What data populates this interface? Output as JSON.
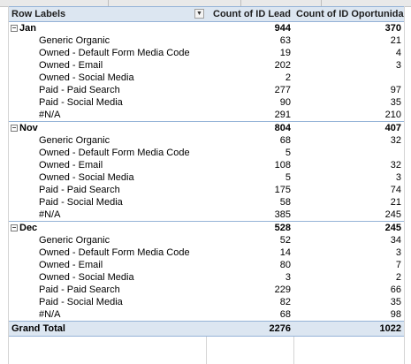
{
  "headers": {
    "row_labels": "Row Labels",
    "count_lead": "Count of ID Lead",
    "count_oportunidade": "Count of ID Oportunidade"
  },
  "groups": [
    {
      "label": "Jan",
      "lead": "944",
      "oport": "370",
      "rows": [
        {
          "label": "Generic Organic",
          "lead": "63",
          "oport": "21"
        },
        {
          "label": "Owned - Default Form Media Code",
          "lead": "19",
          "oport": "4"
        },
        {
          "label": "Owned - Email",
          "lead": "202",
          "oport": "3"
        },
        {
          "label": "Owned - Social Media",
          "lead": "2",
          "oport": ""
        },
        {
          "label": "Paid - Paid Search",
          "lead": "277",
          "oport": "97"
        },
        {
          "label": "Paid - Social Media",
          "lead": "90",
          "oport": "35"
        },
        {
          "label": "#N/A",
          "lead": "291",
          "oport": "210"
        }
      ]
    },
    {
      "label": "Nov",
      "lead": "804",
      "oport": "407",
      "rows": [
        {
          "label": "Generic Organic",
          "lead": "68",
          "oport": "32"
        },
        {
          "label": "Owned - Default Form Media Code",
          "lead": "5",
          "oport": ""
        },
        {
          "label": "Owned - Email",
          "lead": "108",
          "oport": "32"
        },
        {
          "label": "Owned - Social Media",
          "lead": "5",
          "oport": "3"
        },
        {
          "label": "Paid - Paid Search",
          "lead": "175",
          "oport": "74"
        },
        {
          "label": "Paid - Social Media",
          "lead": "58",
          "oport": "21"
        },
        {
          "label": "#N/A",
          "lead": "385",
          "oport": "245"
        }
      ]
    },
    {
      "label": "Dec",
      "lead": "528",
      "oport": "245",
      "rows": [
        {
          "label": "Generic Organic",
          "lead": "52",
          "oport": "34"
        },
        {
          "label": "Owned - Default Form Media Code",
          "lead": "14",
          "oport": "3"
        },
        {
          "label": "Owned - Email",
          "lead": "80",
          "oport": "7"
        },
        {
          "label": "Owned - Social Media",
          "lead": "3",
          "oport": "2"
        },
        {
          "label": "Paid - Paid Search",
          "lead": "229",
          "oport": "66"
        },
        {
          "label": "Paid - Social Media",
          "lead": "82",
          "oport": "35"
        },
        {
          "label": "#N/A",
          "lead": "68",
          "oport": "98"
        }
      ]
    }
  ],
  "grand_total": {
    "label": "Grand Total",
    "lead": "2276",
    "oport": "1022"
  },
  "icons": {
    "filter": "dropdown-filter-icon",
    "expander": "collapse-minus-icon"
  },
  "colors": {
    "header_bg": "#dce6f1",
    "border": "#95b3d7"
  }
}
